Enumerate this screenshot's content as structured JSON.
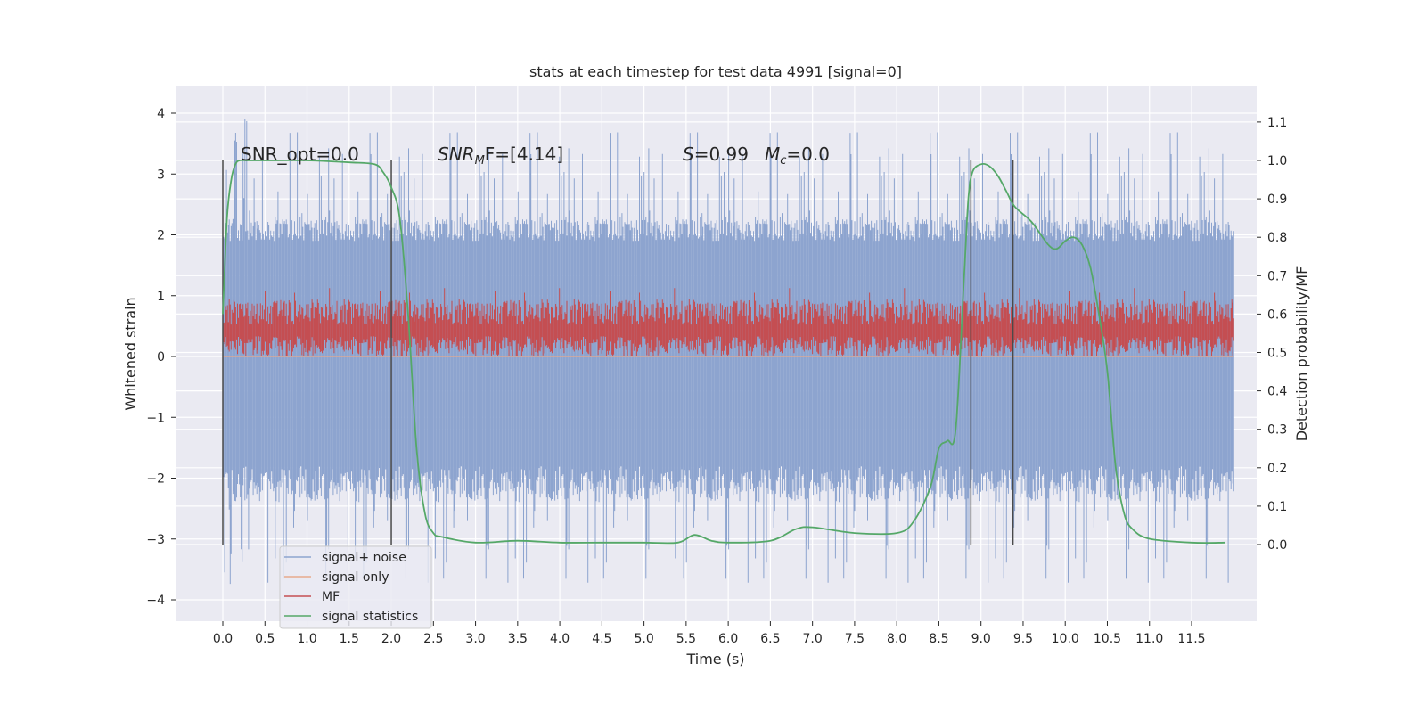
{
  "chart_data": {
    "type": "line",
    "title": "stats at each timestep for test data 4991 [signal=0]",
    "xlabel": "Time (s)",
    "ylabel": "Whitened strain",
    "y2label": "Detection probability/MF",
    "xlim": [
      -0.58,
      12.6
    ],
    "ylim": [
      -4.4,
      4.5
    ],
    "y2lim": [
      -0.2,
      1.18
    ],
    "x_ticks": [
      "0.0",
      "0.5",
      "1.0",
      "1.5",
      "2.0",
      "2.5",
      "3.0",
      "3.5",
      "4.0",
      "4.5",
      "5.0",
      "5.5",
      "6.0",
      "6.5",
      "7.0",
      "7.5",
      "8.0",
      "8.5",
      "9.0",
      "9.5",
      "10.0",
      "10.5",
      "11.0",
      "11.5"
    ],
    "y_ticks": [
      "4",
      "3",
      "2",
      "1",
      "0",
      "−1",
      "−2",
      "−3",
      "−4"
    ],
    "y2_ticks": [
      "1.1",
      "1.0",
      "0.9",
      "0.8",
      "0.7",
      "0.6",
      "0.5",
      "0.4",
      "0.3",
      "0.2",
      "0.1",
      "0.0"
    ],
    "grid": true,
    "legend_position": "lower-left",
    "annotations": {
      "snr_opt": "SNR_opt=0.0",
      "snr_mf_prefix": "SNR",
      "snr_mf_sub": "M",
      "snr_mf_suffix": "F=[4.14]",
      "s_label": "S",
      "s_value": "=0.99",
      "mc_label": "M",
      "mc_sub": "c",
      "mc_value": "=0.0"
    },
    "vertical_markers": [
      0.0,
      2.0,
      8.88,
      9.38
    ],
    "series": [
      {
        "name": "signal+ noise",
        "axis": "left",
        "color": "#8da4cf",
        "x_range": [
          0.0,
          12.0
        ],
        "samples": 1100,
        "core_range": [
          -1.8,
          1.9
        ],
        "peak_range": [
          -3.9,
          4.1
        ]
      },
      {
        "name": "signal only",
        "axis": "left",
        "color": "#e8a98c",
        "x": [
          0.0,
          12.0
        ],
        "y": [
          0.0,
          0.0
        ]
      },
      {
        "name": "MF",
        "axis": "right",
        "color": "#c44e52",
        "x_range": [
          0.0,
          12.0
        ],
        "samples": 1100,
        "range": [
          0.49,
          0.64
        ]
      },
      {
        "name": "signal statistics",
        "axis": "right",
        "color": "#55a868",
        "x": [
          0.0,
          0.05,
          0.1,
          0.15,
          0.2,
          0.3,
          0.5,
          1.0,
          1.5,
          1.8,
          1.9,
          2.0,
          2.1,
          2.2,
          2.3,
          2.4,
          2.5,
          2.6,
          3.0,
          3.5,
          4.0,
          4.5,
          5.0,
          5.4,
          5.6,
          5.8,
          6.0,
          6.5,
          6.8,
          7.0,
          7.5,
          8.0,
          8.2,
          8.4,
          8.5,
          8.6,
          8.7,
          8.8,
          8.85,
          8.9,
          9.0,
          9.1,
          9.2,
          9.3,
          9.4,
          9.6,
          9.8,
          9.9,
          10.0,
          10.1,
          10.2,
          10.3,
          10.4,
          10.5,
          10.6,
          10.7,
          10.8,
          11.0,
          11.5,
          11.9
        ],
        "y": [
          0.6,
          0.85,
          0.95,
          0.99,
          1.0,
          1.0,
          1.0,
          1.0,
          0.995,
          0.99,
          0.97,
          0.93,
          0.85,
          0.6,
          0.25,
          0.08,
          0.03,
          0.02,
          0.005,
          0.01,
          0.005,
          0.005,
          0.005,
          0.005,
          0.025,
          0.01,
          0.005,
          0.01,
          0.04,
          0.045,
          0.03,
          0.03,
          0.06,
          0.15,
          0.25,
          0.27,
          0.3,
          0.7,
          0.9,
          0.97,
          0.99,
          0.985,
          0.96,
          0.92,
          0.88,
          0.84,
          0.78,
          0.77,
          0.79,
          0.8,
          0.78,
          0.72,
          0.6,
          0.45,
          0.2,
          0.08,
          0.04,
          0.015,
          0.005,
          0.005
        ]
      }
    ]
  }
}
